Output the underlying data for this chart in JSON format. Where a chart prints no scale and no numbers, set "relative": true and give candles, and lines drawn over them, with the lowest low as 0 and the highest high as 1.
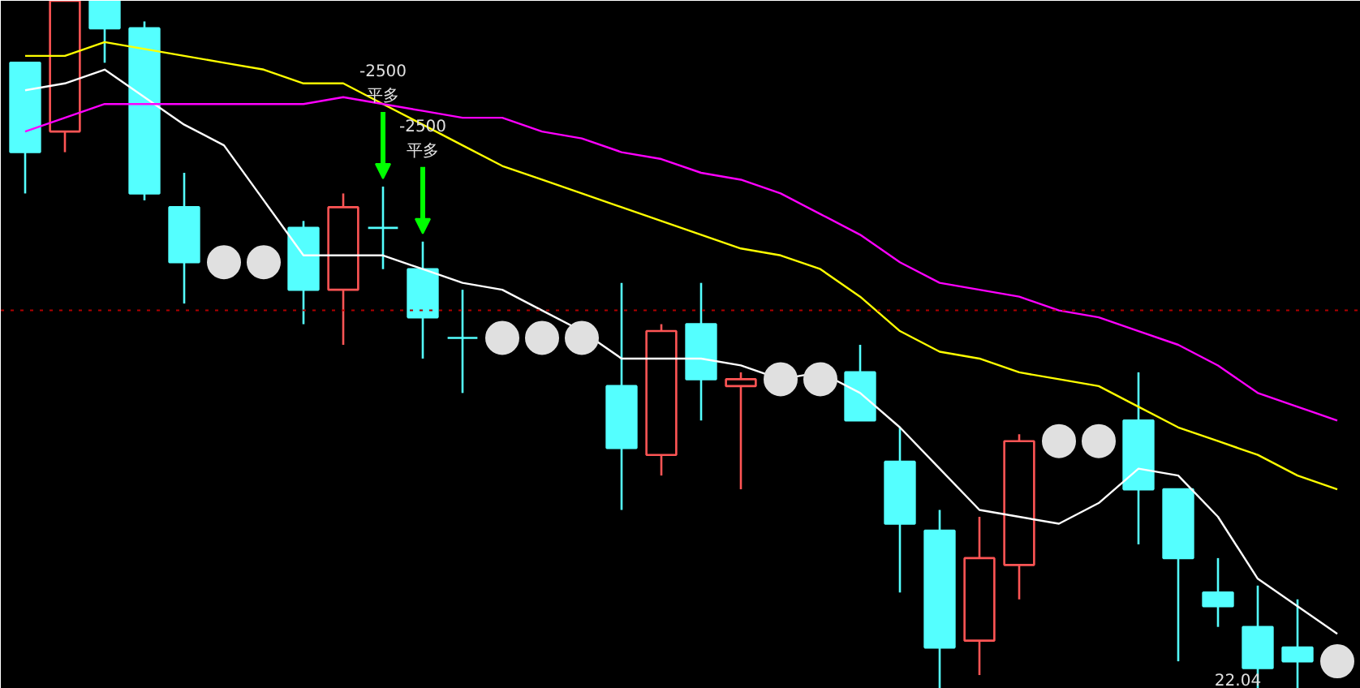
{
  "chart_data": {
    "type": "candlestick",
    "relative": true,
    "categories": [
      null,
      null,
      null,
      null,
      null,
      null,
      null,
      null,
      null,
      null,
      null,
      null,
      null,
      null,
      null,
      null,
      null,
      null,
      null,
      null,
      null,
      null,
      null,
      null,
      null,
      null,
      null,
      null,
      null,
      null,
      null,
      null,
      null,
      null
    ],
    "ohlc": [
      [
        0.91,
        0.91,
        0.72,
        0.78
      ],
      [
        0.81,
        1.0,
        0.78,
        1.0
      ],
      [
        1.0,
        1.0,
        0.91,
        0.96
      ],
      [
        0.96,
        0.97,
        0.71,
        0.72
      ],
      [
        0.7,
        0.75,
        0.56,
        0.62
      ],
      null,
      null,
      [
        0.67,
        0.68,
        0.53,
        0.58
      ],
      [
        0.58,
        0.72,
        0.5,
        0.7
      ],
      [
        0.67,
        0.73,
        0.61,
        0.67
      ],
      [
        0.61,
        0.65,
        0.48,
        0.54
      ],
      [
        0.51,
        0.58,
        0.43,
        0.51
      ],
      null,
      null,
      null,
      [
        0.44,
        0.59,
        0.26,
        0.35
      ],
      [
        0.34,
        0.53,
        0.31,
        0.52
      ],
      [
        0.53,
        0.59,
        0.39,
        0.45
      ],
      [
        0.44,
        0.46,
        0.29,
        0.45
      ],
      null,
      null,
      [
        0.46,
        0.5,
        0.39,
        0.39
      ],
      [
        0.33,
        0.38,
        0.14,
        0.24
      ],
      [
        0.23,
        0.26,
        0.0,
        0.06
      ],
      [
        0.07,
        0.25,
        0.02,
        0.19
      ],
      [
        0.18,
        0.37,
        0.13,
        0.36
      ],
      null,
      null,
      [
        0.39,
        0.46,
        0.21,
        0.29
      ],
      [
        0.29,
        0.29,
        0.04,
        0.19
      ],
      [
        0.14,
        0.19,
        0.09,
        0.12
      ],
      [
        0.09,
        0.15,
        0.0,
        0.03
      ],
      [
        0.06,
        0.13,
        0.0,
        0.04
      ],
      null
    ],
    "colors": [
      "#54ffff",
      "#ff5555",
      "#54ffff",
      "#54ffff",
      "#54ffff",
      null,
      null,
      "#54ffff",
      "#ff5555",
      "#54ffff",
      "#54ffff",
      "#54ffff",
      null,
      null,
      null,
      "#54ffff",
      "#ff5555",
      "#54ffff",
      "#ff5555",
      null,
      null,
      "#54ffff",
      "#54ffff",
      "#54ffff",
      "#ff5555",
      "#ff5555",
      null,
      null,
      "#54ffff",
      "#54ffff",
      "#54ffff",
      "#54ffff",
      "#54ffff",
      null
    ],
    "series": [
      {
        "type": "line",
        "color": "#ffffff",
        "values": [
          0.87,
          0.88,
          0.9,
          0.86,
          0.82,
          0.79,
          0.71,
          0.63,
          0.63,
          0.63,
          0.61,
          0.59,
          0.58,
          0.55,
          0.52,
          0.48,
          0.48,
          0.48,
          0.47,
          0.45,
          0.46,
          0.43,
          0.38,
          0.32,
          0.26,
          0.25,
          0.24,
          0.27,
          0.32,
          0.31,
          0.25,
          0.16,
          0.12,
          0.08
        ]
      },
      {
        "type": "line",
        "color": "#ffff00",
        "values": [
          0.92,
          0.92,
          0.94,
          0.93,
          0.92,
          0.91,
          0.9,
          0.88,
          0.88,
          0.85,
          0.82,
          0.79,
          0.76,
          0.74,
          0.72,
          0.7,
          0.68,
          0.66,
          0.64,
          0.63,
          0.61,
          0.57,
          0.52,
          0.49,
          0.48,
          0.46,
          0.45,
          0.44,
          0.41,
          0.38,
          0.36,
          0.34,
          0.31,
          0.29
        ]
      },
      {
        "type": "line",
        "color": "#ff00ff",
        "values": [
          0.81,
          0.83,
          0.85,
          0.85,
          0.85,
          0.85,
          0.85,
          0.85,
          0.86,
          0.85,
          0.84,
          0.83,
          0.83,
          0.81,
          0.8,
          0.78,
          0.77,
          0.75,
          0.74,
          0.72,
          0.69,
          0.66,
          0.62,
          0.59,
          0.58,
          0.57,
          0.55,
          0.54,
          0.52,
          0.5,
          0.47,
          0.43,
          0.41,
          0.39
        ]
      },
      {
        "type": "scatter",
        "marker": "circle",
        "color": "#e0e0e0",
        "values": [
          null,
          null,
          null,
          null,
          null,
          0.62,
          0.62,
          null,
          null,
          null,
          null,
          null,
          0.51,
          0.51,
          0.51,
          null,
          null,
          null,
          null,
          0.45,
          0.45,
          null,
          null,
          null,
          null,
          null,
          0.36,
          0.36,
          null,
          null,
          null,
          null,
          null,
          0.04
        ]
      }
    ],
    "ref_lines": [
      {
        "axis": "y",
        "value": 0.55,
        "color": "#b00000",
        "line_style": "dotted"
      }
    ],
    "annotations": [
      "-2500",
      "平多",
      "-2500",
      "平多",
      "22.04"
    ],
    "grid": false
  }
}
